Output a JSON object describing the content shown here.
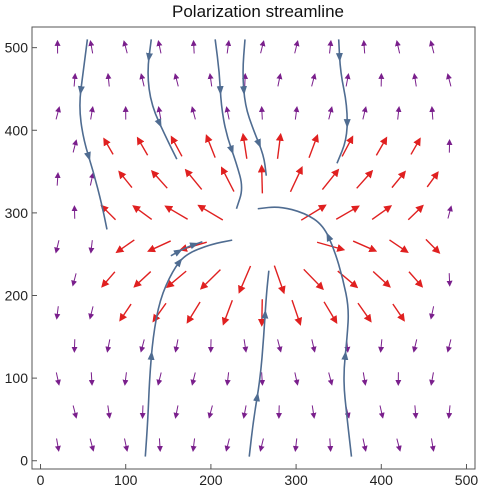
{
  "chart_data": {
    "type": "vector_field_streamplot",
    "title": "Polarization streamline",
    "xlabel": "",
    "ylabel": "",
    "xlim": [
      -10,
      510
    ],
    "ylim": [
      -10,
      525
    ],
    "x_ticks": [
      0,
      100,
      200,
      300,
      400,
      500
    ],
    "y_ticks": [
      0,
      100,
      200,
      300,
      400,
      500
    ],
    "x_tick_labels": [
      "0",
      "100",
      "200",
      "300",
      "400",
      "500"
    ],
    "y_tick_labels": [
      "0",
      "100",
      "200",
      "300",
      "400",
      "500"
    ],
    "frame": true,
    "grid": false,
    "field_grid": {
      "x_start": 20,
      "x_step": 40,
      "x_count": 12,
      "y_start": 20,
      "y_step": 40,
      "y_count": 13
    },
    "defect_center": [
      262,
      270
    ],
    "defect_radius": 40,
    "colors": {
      "background_field": "#7a1f8c",
      "strong_field": "#e02020",
      "streamline": "#4f6c91",
      "frame": "#555555",
      "hole": "#ffffff"
    },
    "streamlines": [
      {
        "points": [
          [
            55,
            510
          ],
          [
            50,
            470
          ],
          [
            45,
            430
          ],
          [
            50,
            390
          ],
          [
            62,
            350
          ],
          [
            72,
            310
          ],
          [
            78,
            280
          ]
        ]
      },
      {
        "points": [
          [
            130,
            510
          ],
          [
            125,
            470
          ],
          [
            130,
            430
          ],
          [
            148,
            390
          ],
          [
            160,
            365
          ]
        ]
      },
      {
        "points": [
          [
            205,
            510
          ],
          [
            210,
            470
          ],
          [
            212,
            430
          ],
          [
            218,
            395
          ],
          [
            230,
            360
          ],
          [
            238,
            330
          ],
          [
            230,
            305
          ]
        ]
      },
      {
        "points": [
          [
            240,
            510
          ],
          [
            237,
            470
          ],
          [
            240,
            430
          ],
          [
            250,
            400
          ],
          [
            262,
            370
          ],
          [
            265,
            345
          ]
        ]
      },
      {
        "points": [
          [
            350,
            510
          ],
          [
            352,
            470
          ],
          [
            360,
            430
          ],
          [
            360,
            390
          ],
          [
            348,
            360
          ]
        ]
      },
      {
        "points": [
          [
            123,
            5
          ],
          [
            126,
            50
          ],
          [
            128,
            100
          ],
          [
            132,
            150
          ],
          [
            140,
            195
          ],
          [
            155,
            230
          ],
          [
            170,
            250
          ],
          [
            200,
            262
          ],
          [
            225,
            267
          ]
        ]
      },
      {
        "points": [
          [
            153,
            248
          ],
          [
            170,
            258
          ],
          [
            190,
            265
          ]
        ]
      },
      {
        "points": [
          [
            245,
            5
          ],
          [
            250,
            50
          ],
          [
            258,
            100
          ],
          [
            262,
            150
          ],
          [
            265,
            200
          ],
          [
            268,
            230
          ]
        ]
      },
      {
        "points": [
          [
            365,
            5
          ],
          [
            360,
            50
          ],
          [
            355,
            100
          ],
          [
            360,
            150
          ],
          [
            362,
            185
          ],
          [
            355,
            220
          ],
          [
            345,
            255
          ],
          [
            332,
            285
          ],
          [
            310,
            300
          ],
          [
            280,
            308
          ],
          [
            255,
            305
          ]
        ]
      }
    ],
    "strong_field_region": {
      "x_range": [
        70,
        460
      ],
      "y_range": [
        180,
        380
      ],
      "ring_inner": 50,
      "ring_outer": 215
    }
  }
}
